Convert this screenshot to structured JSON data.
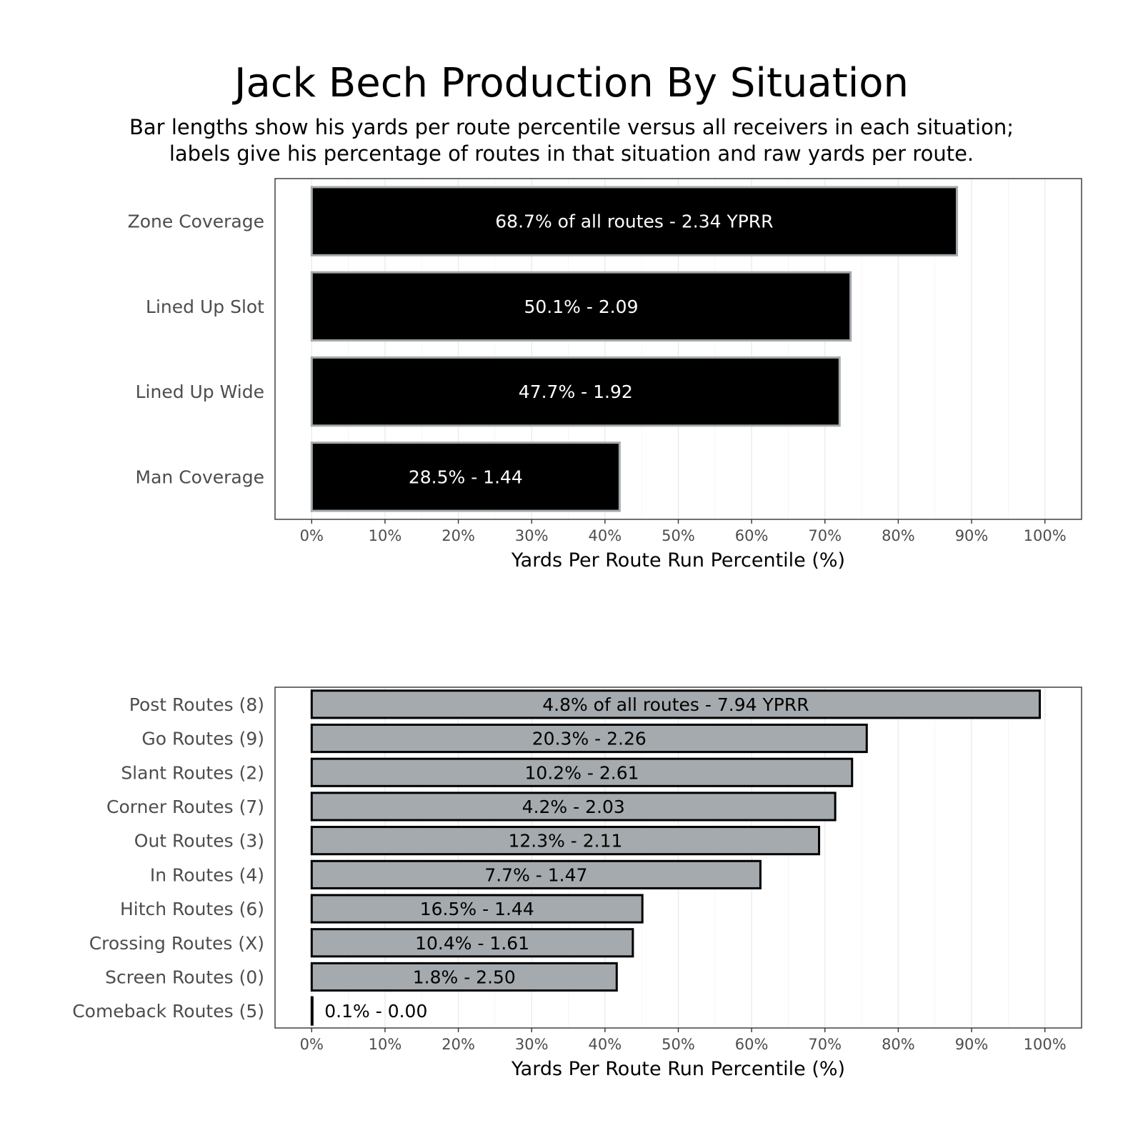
{
  "title": "Jack Bech Production By Situation",
  "subtitle_lines": [
    "Bar lengths show his yards per route percentile versus all receivers in each situation;",
    "labels give his percentage of routes in that situation and raw yards per route."
  ],
  "chart_data": [
    {
      "type": "bar",
      "orientation": "horizontal",
      "categories": [
        "Zone Coverage",
        "Lined Up Slot",
        "Lined Up Wide",
        "Man Coverage"
      ],
      "values": [
        88,
        73.5,
        72,
        42
      ],
      "labels": [
        "68.7% of all routes - 2.34 YPRR",
        "50.1% - 2.09",
        "47.7% - 1.92",
        "28.5% - 1.44"
      ],
      "xlabel": "Yards Per Route Run Percentile (%)",
      "ylabel": "",
      "xlim": [
        0,
        100
      ],
      "x_ticks": [
        "0%",
        "10%",
        "20%",
        "30%",
        "40%",
        "50%",
        "60%",
        "70%",
        "80%",
        "90%",
        "100%"
      ],
      "bar_fill": "#000000",
      "bar_stroke": "#a4aaad",
      "label_color": "#ffffff",
      "grid": true
    },
    {
      "type": "bar",
      "orientation": "horizontal",
      "categories": [
        "Post Routes (8)",
        "Go Routes (9)",
        "Slant Routes (2)",
        "Corner Routes (7)",
        "Out Routes (3)",
        "In Routes (4)",
        "Hitch Routes (6)",
        "Crossing Routes (X)",
        "Screen Routes (0)",
        "Comeback Routes (5)"
      ],
      "values": [
        99.3,
        75.7,
        73.7,
        71.4,
        69.2,
        61.2,
        45.1,
        43.8,
        41.6,
        0.1
      ],
      "labels": [
        "4.8% of all routes - 7.94 YPRR",
        "20.3% - 2.26",
        "10.2% - 2.61",
        "4.2% - 2.03",
        "12.3% - 2.11",
        "7.7% - 1.47",
        "16.5% - 1.44",
        "10.4% - 1.61",
        "1.8% - 2.50",
        "0.1% - 0.00"
      ],
      "xlabel": "Yards Per Route Run Percentile (%)",
      "ylabel": "",
      "xlim": [
        0,
        100
      ],
      "x_ticks": [
        "0%",
        "10%",
        "20%",
        "30%",
        "40%",
        "50%",
        "60%",
        "70%",
        "80%",
        "90%",
        "100%"
      ],
      "bar_fill": "#a4aaad",
      "bar_stroke": "#000000",
      "label_color": "#000000",
      "grid": true
    }
  ]
}
